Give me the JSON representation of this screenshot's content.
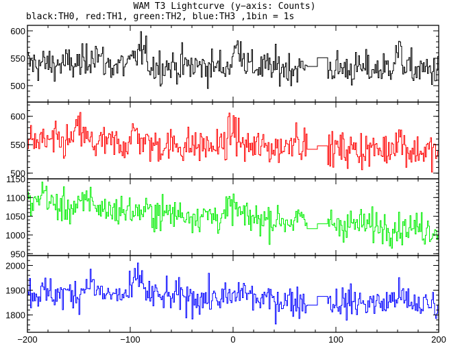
{
  "title": "WAM T3 Lightcurve (y−axis: Counts)",
  "subtitle": "black:TH0, red:TH1, green:TH2, blue:TH3 ,1bin = 1s",
  "chart_data": {
    "type": "line",
    "x_range": [
      -200,
      200
    ],
    "x_ticks": [
      -200,
      -100,
      0,
      100,
      200
    ],
    "x_tick_labels": [
      "−200",
      "−100",
      "0",
      "100",
      "200"
    ],
    "gap": {
      "from": 72,
      "to": 92
    },
    "panels": [
      {
        "name": "TH0",
        "color": "#000000",
        "ylim": [
          470,
          610
        ],
        "yticks": [
          500,
          550,
          600
        ],
        "level_start": 540,
        "level_end": 528,
        "noise": 22,
        "gap_levels": [
          535,
          551
        ],
        "features": [
          {
            "x": -135,
            "h": 25
          },
          {
            "x": -90,
            "h": 30
          },
          {
            "x": 5,
            "h": 40
          },
          {
            "x": 160,
            "h": 30
          }
        ]
      },
      {
        "name": "TH1",
        "color": "#ff0000",
        "ylim": [
          490,
          625
        ],
        "yticks": [
          500,
          550,
          600
        ],
        "level_start": 555,
        "level_end": 538,
        "noise": 22,
        "gap_levels": [
          542,
          548
        ],
        "features": [
          {
            "x": -150,
            "h": 25
          },
          {
            "x": -95,
            "h": 20
          },
          {
            "x": 0,
            "h": 30
          },
          {
            "x": 60,
            "h": 25
          },
          {
            "x": 160,
            "h": 25
          }
        ]
      },
      {
        "name": "TH2",
        "color": "#00ee00",
        "ylim": [
          945,
          1150
        ],
        "yticks": [
          950,
          1000,
          1050,
          1100,
          1150
        ],
        "level_start": 1080,
        "level_end": 1015,
        "noise": 30,
        "gap_levels": [
          1017,
          1030
        ],
        "features": [
          {
            "x": -185,
            "h": 40
          },
          {
            "x": -140,
            "h": 30
          },
          {
            "x": 0,
            "h": 30
          }
        ]
      },
      {
        "name": "TH3",
        "color": "#0000ff",
        "ylim": [
          1730,
          2040
        ],
        "yticks": [
          1800,
          1900,
          2000
        ],
        "level_start": 1890,
        "level_end": 1840,
        "noise": 45,
        "gap_levels": [
          1840,
          1875
        ],
        "features": [
          {
            "x": -140,
            "h": 60
          },
          {
            "x": -92,
            "h": 80
          },
          {
            "x": 10,
            "h": 40
          },
          {
            "x": 160,
            "h": 40
          }
        ]
      }
    ]
  }
}
